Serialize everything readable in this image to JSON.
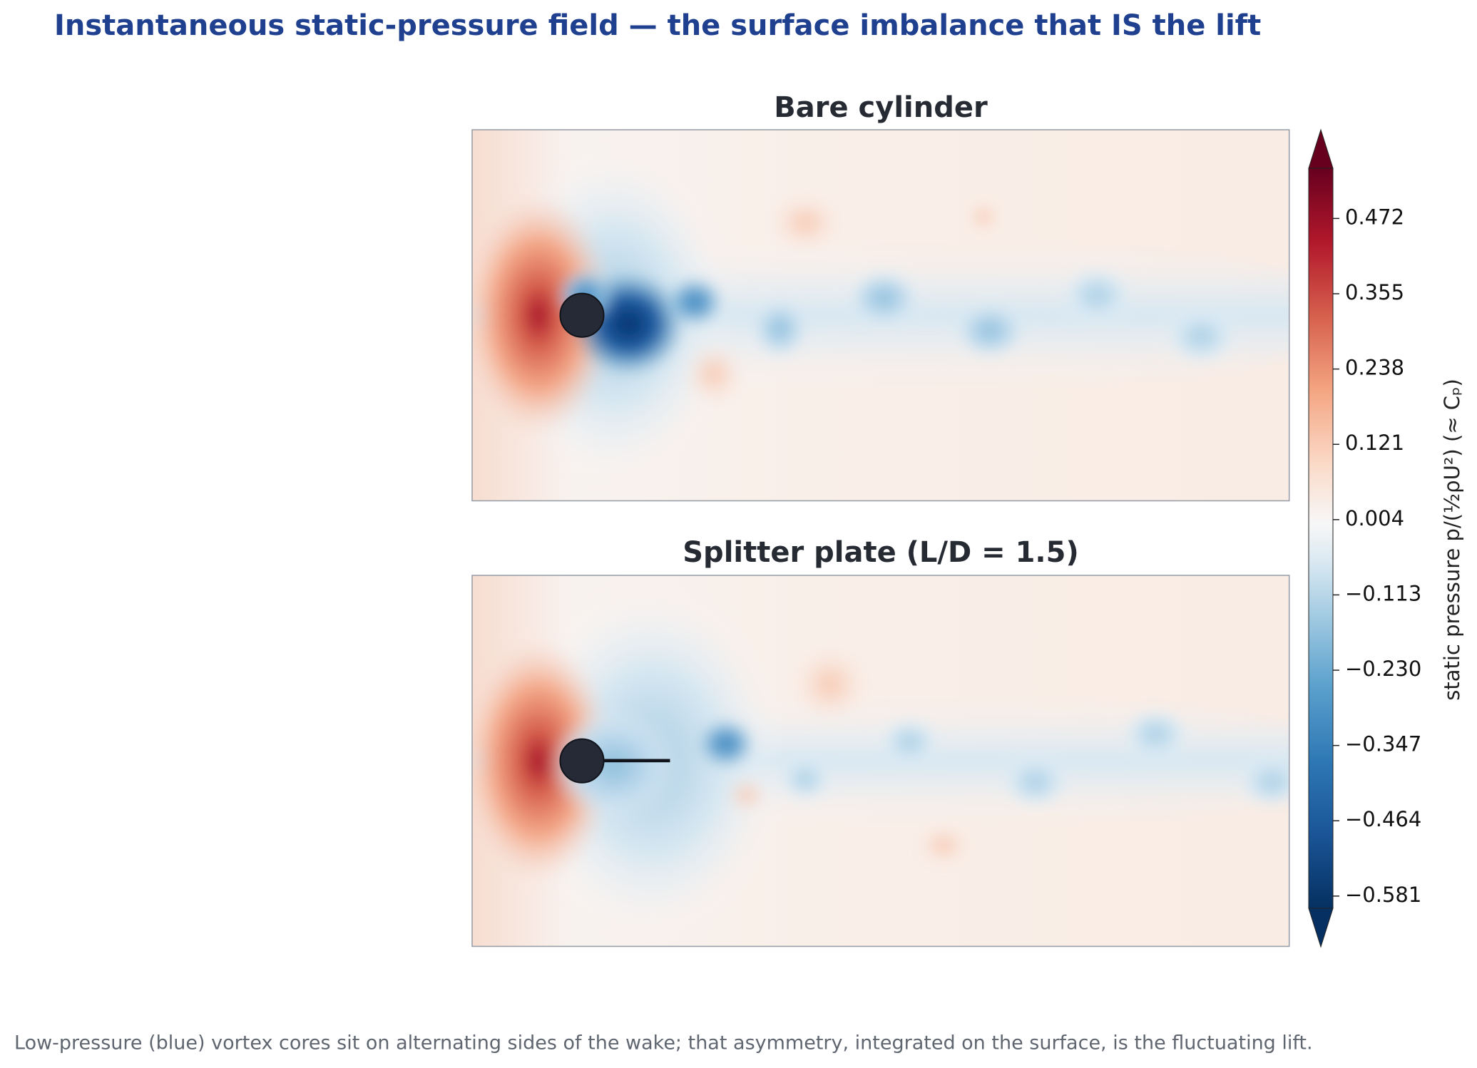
{
  "chart_data": {
    "type": "contour",
    "title": "Instantaneous static-pressure field — the surface imbalance that IS the lift",
    "panels": [
      {
        "title": "Bare cylinder"
      },
      {
        "title": "Splitter plate (L/D = 1.5)"
      }
    ],
    "colorbar": {
      "label": "static pressure  p/(½ρU²)  (≈ Cₚ)",
      "clim": [
        -0.6,
        0.55
      ],
      "ticks": [
        {
          "value": -0.581,
          "label": "−0.581"
        },
        {
          "value": -0.464,
          "label": "−0.464"
        },
        {
          "value": -0.347,
          "label": "−0.347"
        },
        {
          "value": -0.23,
          "label": "−0.230"
        },
        {
          "value": -0.113,
          "label": "−0.113"
        },
        0.004,
        0.121,
        0.238,
        0.355,
        0.472
      ],
      "colormap": "RdBu_r"
    },
    "caption": "Low-pressure (blue) vortex cores sit on alternating sides of the wake; that asymmetry, integrated on the surface, is the fluctuating lift."
  }
}
